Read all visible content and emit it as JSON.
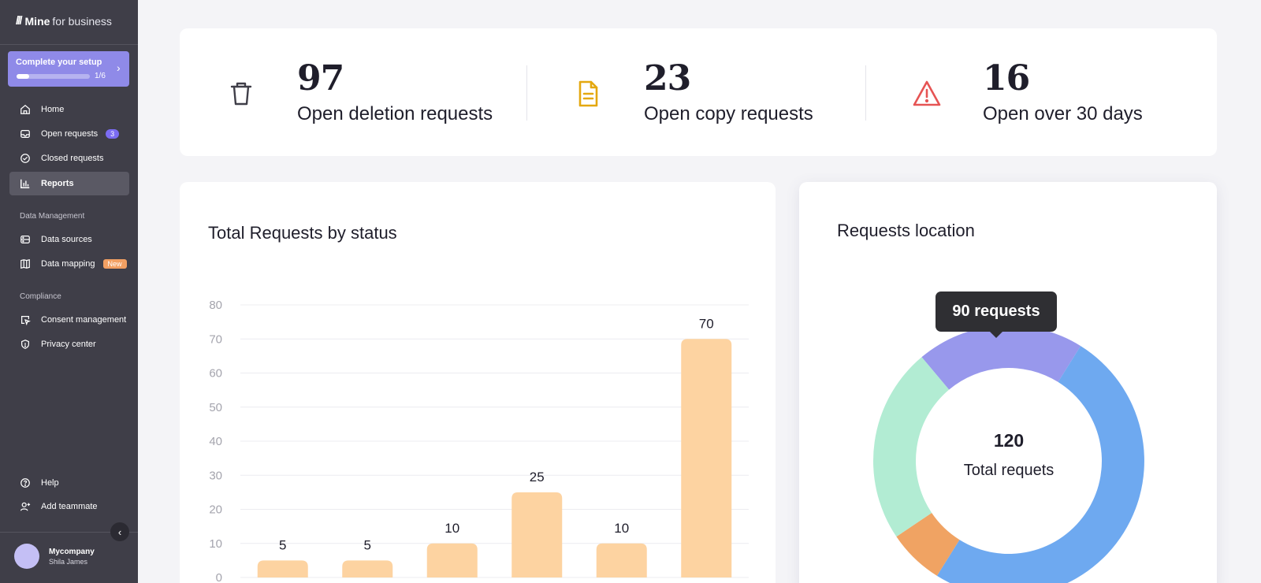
{
  "sidebar": {
    "logo_brand": "Mine",
    "logo_sub": "for business",
    "setup": {
      "title": "Complete your setup",
      "progress_label": "1/6",
      "progress": 0.1667
    },
    "nav": [
      {
        "label": "Home",
        "icon": "home-icon"
      },
      {
        "label": "Open requests",
        "icon": "inbox-icon",
        "badge": "3"
      },
      {
        "label": "Closed requests",
        "icon": "check-circle-icon"
      },
      {
        "label": "Reports",
        "icon": "bar-chart-icon",
        "active": true
      }
    ],
    "section_data": "Data Management",
    "data_nav": [
      {
        "label": "Data sources",
        "icon": "database-icon"
      },
      {
        "label": "Data mapping",
        "icon": "map-icon",
        "badge": "New"
      }
    ],
    "section_compliance": "Compliance",
    "compliance_nav": [
      {
        "label": "Consent management",
        "icon": "cursor-select-icon"
      },
      {
        "label": "Privacy center",
        "icon": "shield-icon"
      }
    ],
    "bottom_nav": [
      {
        "label": "Help",
        "icon": "help-icon"
      },
      {
        "label": "Add teammate",
        "icon": "add-user-icon"
      }
    ],
    "user": {
      "company": "Mycompany",
      "name": "Shila James"
    }
  },
  "stats": [
    {
      "value": "97",
      "label": "Open deletion requests",
      "icon": "trash-icon",
      "bg": "#ebebed",
      "fg": "#3f3e48"
    },
    {
      "value": "23",
      "label": "Open copy requests",
      "icon": "document-icon",
      "bg": "#fef1cf",
      "fg": "#e4a810"
    },
    {
      "value": "16",
      "label": "Open over 30 days",
      "icon": "warning-icon",
      "bg": "#fce3e3",
      "fg": "#e65454"
    }
  ],
  "status_chart": {
    "title": "Total Requests by status"
  },
  "location_chart": {
    "title": "Requests location",
    "tooltip": "90 requests",
    "total_value": "120",
    "total_label": "Total requets"
  },
  "chart_data": [
    {
      "type": "bar",
      "title": "Total Requests by status",
      "categories": [
        "",
        "",
        "",
        "",
        "",
        ""
      ],
      "values": [
        5,
        5,
        10,
        25,
        10,
        70
      ],
      "ylim": [
        0,
        80
      ],
      "yticks": [
        0,
        10,
        20,
        30,
        40,
        50,
        60,
        70,
        80
      ],
      "grid": true,
      "bar_color": "#fdd3a1"
    },
    {
      "type": "pie",
      "title": "Requests location",
      "slices": [
        {
          "value": 24,
          "color": "#9898ec"
        },
        {
          "value": 60,
          "color": "#6ea9f0"
        },
        {
          "value": 8,
          "color": "#f0a363"
        },
        {
          "value": 28,
          "color": "#b2ecd3"
        }
      ],
      "start_angle": 320,
      "total": 120
    }
  ]
}
